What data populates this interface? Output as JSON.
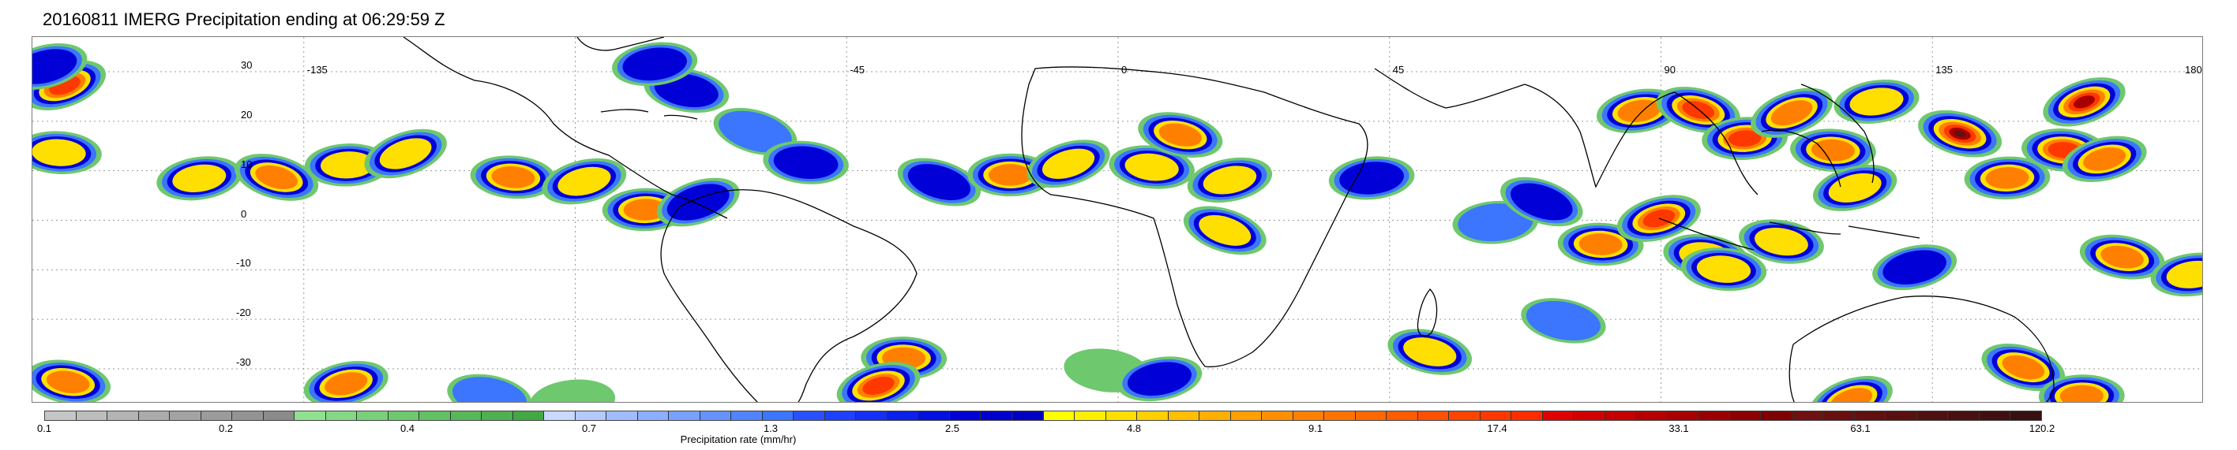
{
  "title": "20160811 IMERG Precipitation ending at 06:29:59 Z",
  "map": {
    "lat_labels": [
      "30",
      "20",
      "10",
      "0",
      "-10",
      "-20",
      "-30"
    ],
    "lat_values": [
      30,
      20,
      10,
      0,
      -10,
      -20,
      -30
    ],
    "lon_labels": [
      "-135",
      "-45",
      "0",
      "45",
      "90",
      "135",
      "180"
    ],
    "lon_values": [
      -135,
      -45,
      0,
      45,
      90,
      135,
      180
    ],
    "lat_range": [
      -37,
      37
    ],
    "lon_range": [
      -180,
      180
    ],
    "gridlines": "dotted",
    "land_outline_color": "#000000",
    "precip_cells": [
      {
        "lon": -174,
        "lat": 27,
        "value": 17.4
      },
      {
        "lon": -176,
        "lat": 14,
        "value": 4.8
      },
      {
        "lon": -178,
        "lat": 31,
        "value": 2.5
      },
      {
        "lon": -174,
        "lat": -33,
        "value": 9.1
      },
      {
        "lon": -152,
        "lat": 9,
        "value": 4.8
      },
      {
        "lon": -140,
        "lat": 9,
        "value": 9.1
      },
      {
        "lon": -128,
        "lat": 11,
        "value": 4.8
      },
      {
        "lon": -118,
        "lat": 13,
        "value": 4.8
      },
      {
        "lon": -100,
        "lat": 9,
        "value": 9.1
      },
      {
        "lon": -88,
        "lat": 8,
        "value": 4.8
      },
      {
        "lon": -72,
        "lat": 26,
        "value": 2.5
      },
      {
        "lon": -77,
        "lat": 32,
        "value": 2.5
      },
      {
        "lon": -60,
        "lat": 18,
        "value": 1.3
      },
      {
        "lon": -78,
        "lat": 2,
        "value": 9.1
      },
      {
        "lon": -70,
        "lat": 3,
        "value": 2.5
      },
      {
        "lon": -52,
        "lat": 12,
        "value": 2.5
      },
      {
        "lon": -128,
        "lat": -33,
        "value": 9.1
      },
      {
        "lon": -104,
        "lat": -36,
        "value": 1.3
      },
      {
        "lon": -90,
        "lat": -36,
        "value": 0.7
      },
      {
        "lon": -30,
        "lat": 8,
        "value": 2.5
      },
      {
        "lon": -18,
        "lat": 9,
        "value": 9.1
      },
      {
        "lon": -8,
        "lat": 11,
        "value": 4.8
      },
      {
        "lon": 6,
        "lat": 11,
        "value": 4.8
      },
      {
        "lon": 18,
        "lat": 8,
        "value": 4.8
      },
      {
        "lon": 10,
        "lat": 17,
        "value": 9.1
      },
      {
        "lon": 42,
        "lat": 9,
        "value": 2.5
      },
      {
        "lon": 18,
        "lat": -2,
        "value": 4.8
      },
      {
        "lon": -35,
        "lat": -28,
        "value": 9.1
      },
      {
        "lon": -40,
        "lat": -34,
        "value": 17.4
      },
      {
        "lon": -2,
        "lat": -30,
        "value": 0.7
      },
      {
        "lon": 7,
        "lat": -32,
        "value": 2.5
      },
      {
        "lon": 52,
        "lat": -27,
        "value": 4.8
      },
      {
        "lon": 62,
        "lat": 0,
        "value": 1.3
      },
      {
        "lon": 70,
        "lat": 4,
        "value": 2.5
      },
      {
        "lon": 80,
        "lat": -5,
        "value": 9.1
      },
      {
        "lon": 90,
        "lat": 0,
        "value": 17.4
      },
      {
        "lon": 98,
        "lat": -7,
        "value": 4.8
      },
      {
        "lon": 86,
        "lat": 22,
        "value": 9.1
      },
      {
        "lon": 96,
        "lat": 22,
        "value": 17.4
      },
      {
        "lon": 104,
        "lat": 17,
        "value": 17.4
      },
      {
        "lon": 112,
        "lat": 22,
        "value": 9.1
      },
      {
        "lon": 118,
        "lat": 14,
        "value": 9.1
      },
      {
        "lon": 122,
        "lat": 6,
        "value": 4.8
      },
      {
        "lon": 110,
        "lat": -4,
        "value": 4.8
      },
      {
        "lon": 126,
        "lat": 24,
        "value": 4.8
      },
      {
        "lon": 140,
        "lat": 17,
        "value": 63.1
      },
      {
        "lon": 147,
        "lat": 9,
        "value": 9.1
      },
      {
        "lon": 160,
        "lat": 24,
        "value": 33.1
      },
      {
        "lon": 157,
        "lat": 14,
        "value": 17.4
      },
      {
        "lon": 164,
        "lat": 12,
        "value": 9.1
      },
      {
        "lon": 166,
        "lat": -7,
        "value": 9.1
      },
      {
        "lon": 178,
        "lat": -11,
        "value": 4.8
      },
      {
        "lon": 150,
        "lat": -30,
        "value": 9.1
      },
      {
        "lon": 160,
        "lat": -35,
        "value": 9.1
      },
      {
        "lon": 122,
        "lat": -36,
        "value": 9.1
      },
      {
        "lon": 100,
        "lat": -10,
        "value": 4.8
      },
      {
        "lon": 132,
        "lat": -10,
        "value": 2.5
      },
      {
        "lon": 74,
        "lat": -20,
        "value": 1.3
      }
    ]
  },
  "colorbar": {
    "label": "Precipitation rate (mm/hr)",
    "tick_labels": [
      "0.1",
      "0.2",
      "0.4",
      "0.7",
      "1.3",
      "2.5",
      "4.8",
      "9.1",
      "17.4",
      "33.1",
      "63.1",
      "120.2"
    ],
    "colors": [
      "#c6c6c6",
      "#bdbdbd",
      "#b4b4b4",
      "#ababab",
      "#a3a3a3",
      "#9b9b9b",
      "#939393",
      "#8b8b8b",
      "#8fe08f",
      "#84d884",
      "#79d079",
      "#6ec86e",
      "#63c063",
      "#58b858",
      "#4eb04e",
      "#43a843",
      "#c8d8ff",
      "#b4caff",
      "#a0bcff",
      "#8caeff",
      "#78a0ff",
      "#6492ff",
      "#5084ff",
      "#3c76ff",
      "#2850ff",
      "#1e40ff",
      "#1430f5",
      "#0a20eb",
      "#0010e1",
      "#0000d7",
      "#0000cd",
      "#0000c3",
      "#ffff00",
      "#ffef00",
      "#ffdf00",
      "#ffcf00",
      "#ffbf00",
      "#ffaf00",
      "#ff9f00",
      "#ff8f00",
      "#ff8000",
      "#ff7400",
      "#ff6800",
      "#ff5c00",
      "#ff5000",
      "#ff4400",
      "#ff3800",
      "#ff2c00",
      "#e00000",
      "#d20000",
      "#c40000",
      "#b60000",
      "#a80000",
      "#9a0000",
      "#8c0000",
      "#7e0000",
      "#701010",
      "#681010",
      "#601010",
      "#581010",
      "#501010",
      "#481010",
      "#401010",
      "#381010"
    ]
  }
}
